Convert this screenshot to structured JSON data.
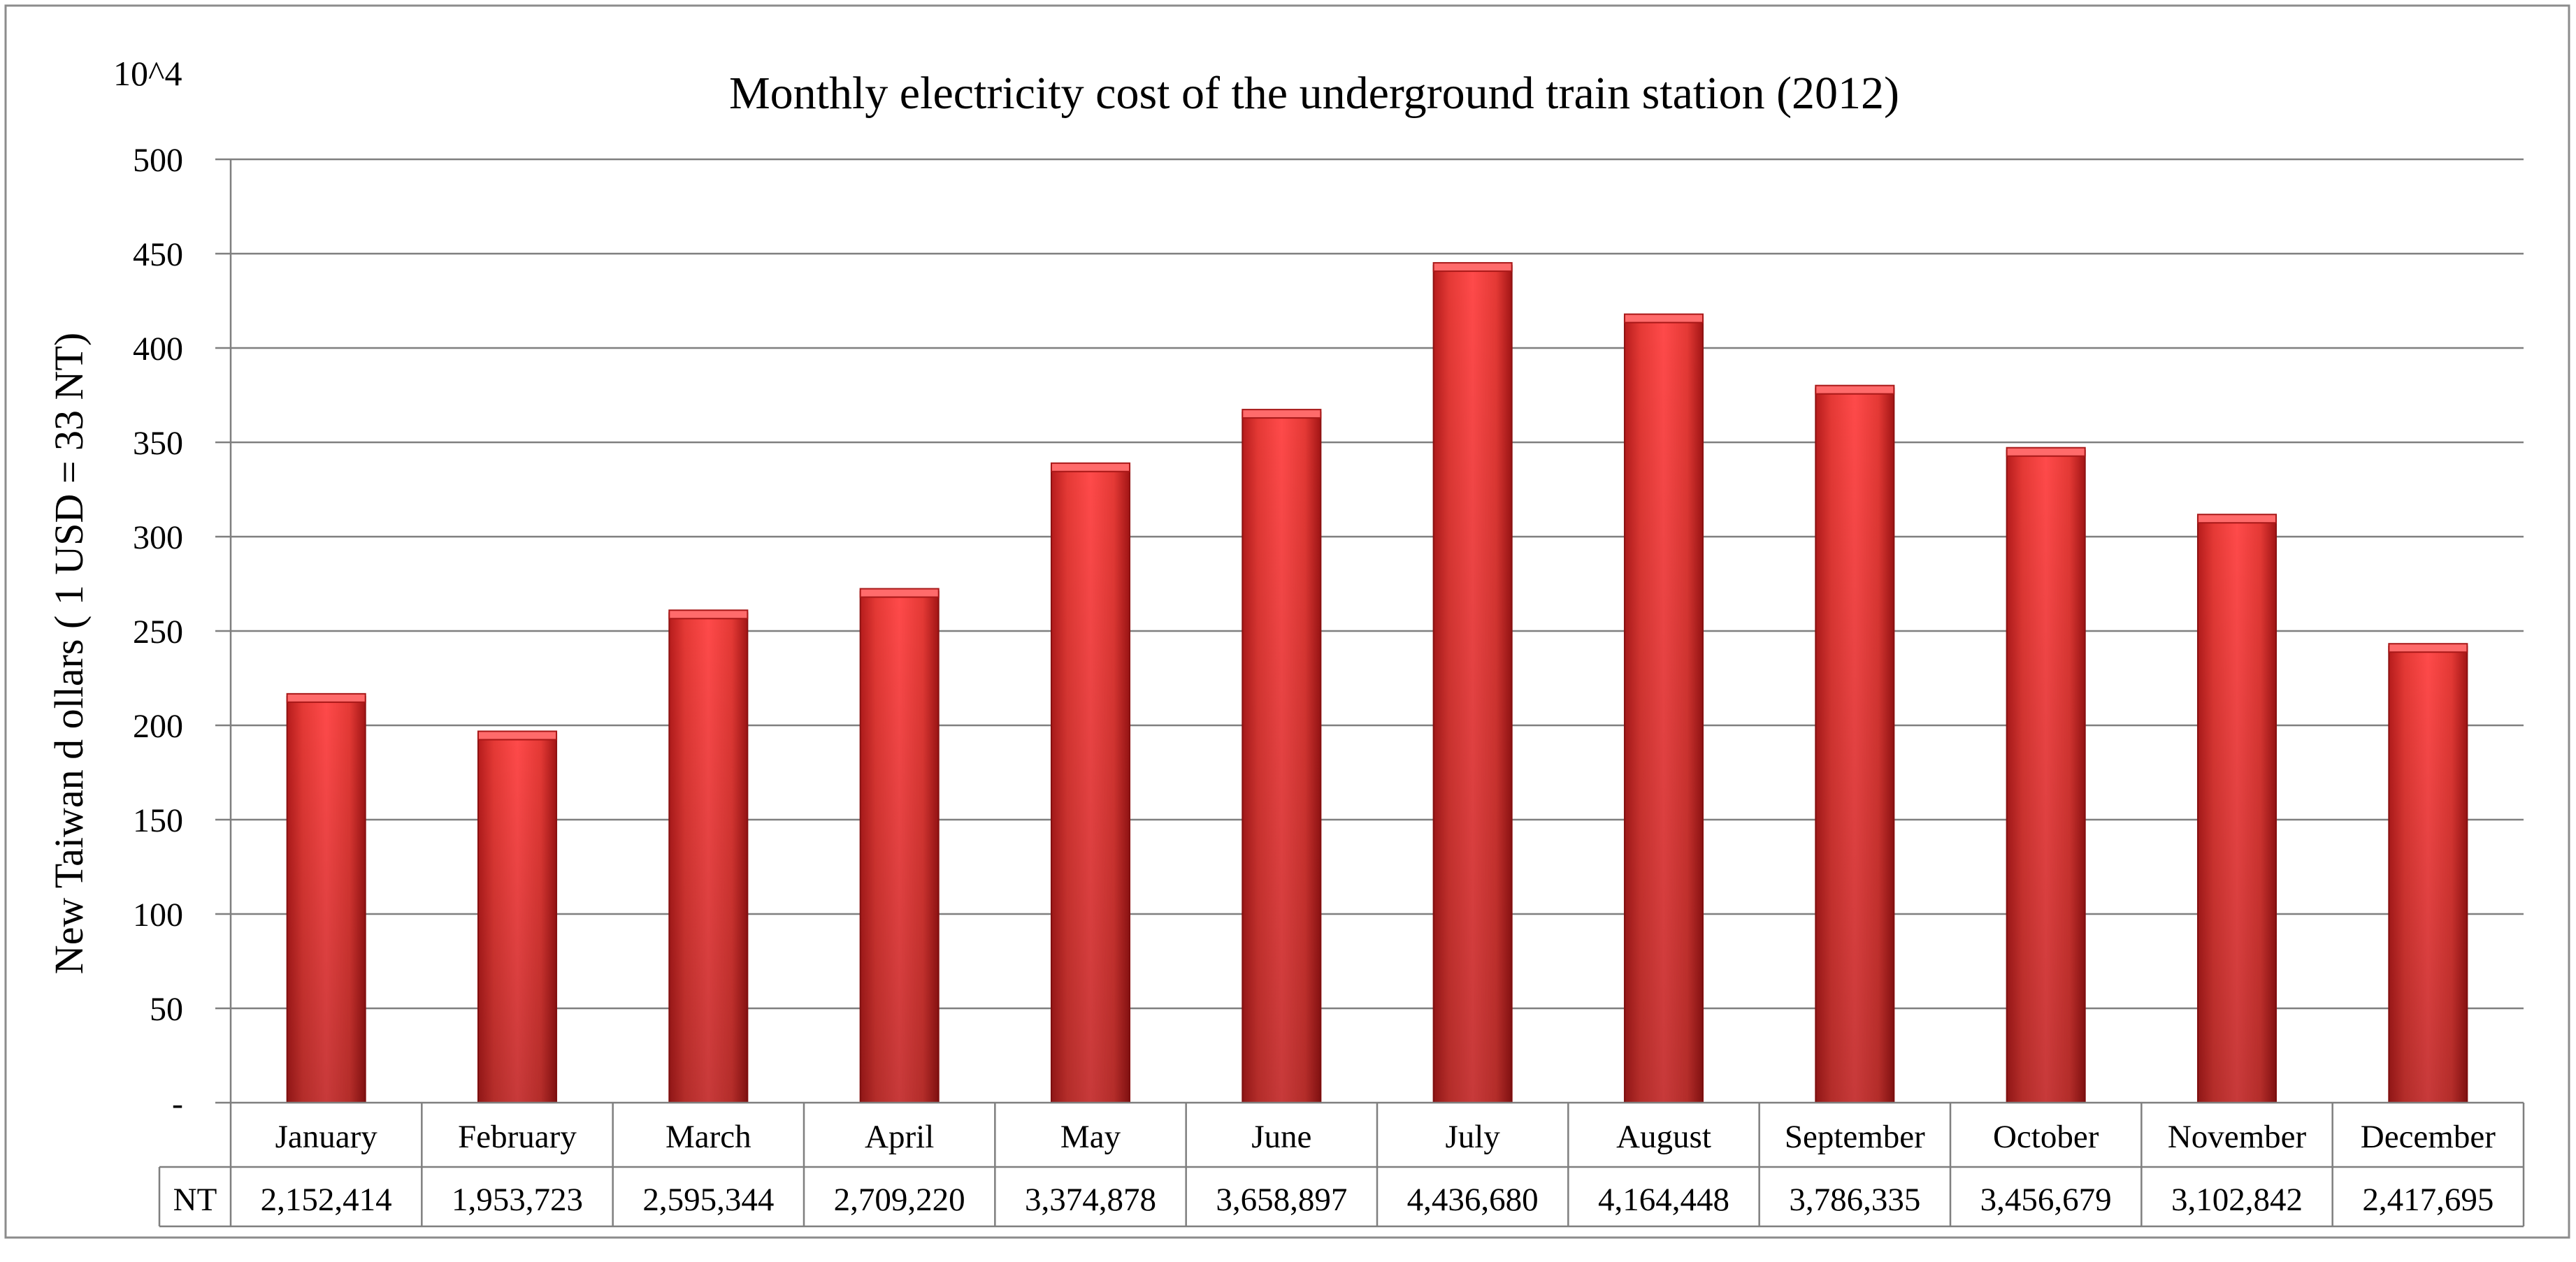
{
  "chart_data": {
    "type": "bar",
    "title": "Monthly electricity cost of the underground train station (2012)",
    "unit_label": "10^4",
    "ylabel": "New Taiwan d ollars ( 1 USD = 33 NT)",
    "xlabel": "",
    "ylim": [
      0,
      500
    ],
    "yticks": [
      "-",
      "50",
      "100",
      "150",
      "200",
      "250",
      "300",
      "350",
      "400",
      "450",
      "500"
    ],
    "ytick_values": [
      0,
      50,
      100,
      150,
      200,
      250,
      300,
      350,
      400,
      450,
      500
    ],
    "grid": true,
    "categories": [
      "January",
      "February",
      "March",
      "April",
      "May",
      "June",
      "July",
      "August",
      "September",
      "October",
      "November",
      "December"
    ],
    "series": [
      {
        "name": "NT",
        "color": "#e83232",
        "values": [
          215.2414,
          195.3723,
          259.5344,
          270.922,
          337.4878,
          365.8897,
          443.668,
          416.4448,
          378.6335,
          345.6679,
          310.2842,
          241.7695
        ],
        "table_values": [
          "2,152,414",
          "1,953,723",
          "2,595,344",
          "2,709,220",
          "3,374,878",
          "3,658,897",
          "4,436,680",
          "4,164,448",
          "3,786,335",
          "3,456,679",
          "3,102,842",
          "2,417,695"
        ]
      }
    ]
  }
}
